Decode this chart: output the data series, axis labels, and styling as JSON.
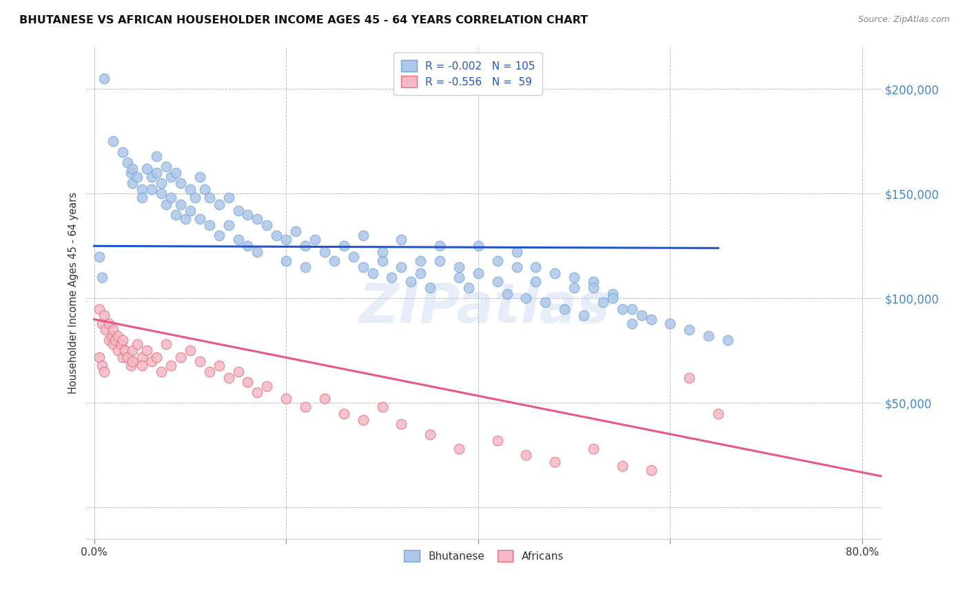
{
  "title": "BHUTANESE VS AFRICAN HOUSEHOLDER INCOME AGES 45 - 64 YEARS CORRELATION CHART",
  "source": "Source: ZipAtlas.com",
  "ylabel": "Householder Income Ages 45 - 64 years",
  "yticks": [
    0,
    50000,
    100000,
    150000,
    200000
  ],
  "ytick_labels": [
    "",
    "$50,000",
    "$100,000",
    "$150,000",
    "$200,000"
  ],
  "ylim": [
    -15000,
    220000
  ],
  "xlim": [
    -0.008,
    0.82
  ],
  "bhutanese_color": "#aec6e8",
  "african_color": "#f4b8c8",
  "bhutanese_edge": "#6fa8dc",
  "african_edge": "#e87070",
  "trend_blue": "#2255cc",
  "trend_pink": "#e8558a",
  "watermark": "ZIPatlas",
  "background": "#ffffff",
  "grid_color": "#bbbbbb",
  "bhutanese_x": [
    0.01,
    0.02,
    0.03,
    0.035,
    0.038,
    0.04,
    0.04,
    0.045,
    0.05,
    0.05,
    0.055,
    0.06,
    0.06,
    0.065,
    0.065,
    0.07,
    0.07,
    0.075,
    0.075,
    0.08,
    0.08,
    0.085,
    0.085,
    0.09,
    0.09,
    0.095,
    0.1,
    0.1,
    0.105,
    0.11,
    0.11,
    0.115,
    0.12,
    0.12,
    0.13,
    0.13,
    0.14,
    0.14,
    0.15,
    0.15,
    0.16,
    0.16,
    0.17,
    0.17,
    0.18,
    0.19,
    0.2,
    0.2,
    0.21,
    0.22,
    0.22,
    0.23,
    0.24,
    0.25,
    0.26,
    0.27,
    0.28,
    0.29,
    0.3,
    0.31,
    0.32,
    0.33,
    0.34,
    0.35,
    0.36,
    0.38,
    0.39,
    0.4,
    0.42,
    0.43,
    0.44,
    0.45,
    0.46,
    0.47,
    0.48,
    0.49,
    0.5,
    0.51,
    0.52,
    0.53,
    0.54,
    0.55,
    0.56,
    0.57,
    0.4,
    0.42,
    0.44,
    0.46,
    0.28,
    0.3,
    0.32,
    0.34,
    0.36,
    0.38,
    0.5,
    0.52,
    0.54,
    0.56,
    0.58,
    0.6,
    0.62,
    0.64,
    0.66,
    0.005,
    0.008
  ],
  "bhutanese_y": [
    205000,
    175000,
    170000,
    165000,
    160000,
    162000,
    155000,
    158000,
    152000,
    148000,
    162000,
    158000,
    152000,
    168000,
    160000,
    155000,
    150000,
    163000,
    145000,
    158000,
    148000,
    160000,
    140000,
    155000,
    145000,
    138000,
    152000,
    142000,
    148000,
    158000,
    138000,
    152000,
    148000,
    135000,
    145000,
    130000,
    148000,
    135000,
    142000,
    128000,
    140000,
    125000,
    138000,
    122000,
    135000,
    130000,
    128000,
    118000,
    132000,
    125000,
    115000,
    128000,
    122000,
    118000,
    125000,
    120000,
    115000,
    112000,
    118000,
    110000,
    115000,
    108000,
    112000,
    105000,
    118000,
    110000,
    105000,
    112000,
    108000,
    102000,
    115000,
    100000,
    108000,
    98000,
    112000,
    95000,
    105000,
    92000,
    108000,
    98000,
    102000,
    95000,
    88000,
    92000,
    125000,
    118000,
    122000,
    115000,
    130000,
    122000,
    128000,
    118000,
    125000,
    115000,
    110000,
    105000,
    100000,
    95000,
    90000,
    88000,
    85000,
    82000,
    80000,
    120000,
    110000
  ],
  "african_x": [
    0.005,
    0.008,
    0.01,
    0.012,
    0.015,
    0.015,
    0.018,
    0.02,
    0.02,
    0.022,
    0.025,
    0.025,
    0.028,
    0.03,
    0.03,
    0.032,
    0.035,
    0.038,
    0.04,
    0.04,
    0.045,
    0.05,
    0.05,
    0.055,
    0.06,
    0.065,
    0.07,
    0.075,
    0.08,
    0.09,
    0.1,
    0.11,
    0.12,
    0.13,
    0.14,
    0.15,
    0.16,
    0.17,
    0.18,
    0.2,
    0.22,
    0.24,
    0.26,
    0.28,
    0.3,
    0.32,
    0.35,
    0.38,
    0.42,
    0.45,
    0.48,
    0.52,
    0.55,
    0.58,
    0.62,
    0.65,
    0.005,
    0.008,
    0.01
  ],
  "african_y": [
    95000,
    88000,
    92000,
    85000,
    80000,
    88000,
    82000,
    78000,
    85000,
    80000,
    75000,
    82000,
    78000,
    72000,
    80000,
    75000,
    72000,
    68000,
    75000,
    70000,
    78000,
    72000,
    68000,
    75000,
    70000,
    72000,
    65000,
    78000,
    68000,
    72000,
    75000,
    70000,
    65000,
    68000,
    62000,
    65000,
    60000,
    55000,
    58000,
    52000,
    48000,
    52000,
    45000,
    42000,
    48000,
    40000,
    35000,
    28000,
    32000,
    25000,
    22000,
    28000,
    20000,
    18000,
    62000,
    45000,
    72000,
    68000,
    65000
  ],
  "bhutanese_trend_x": [
    0.0,
    0.65
  ],
  "bhutanese_trend_y": [
    125000,
    124000
  ],
  "african_trend_x": [
    0.0,
    0.82
  ],
  "african_trend_y": [
    90000,
    15000
  ]
}
